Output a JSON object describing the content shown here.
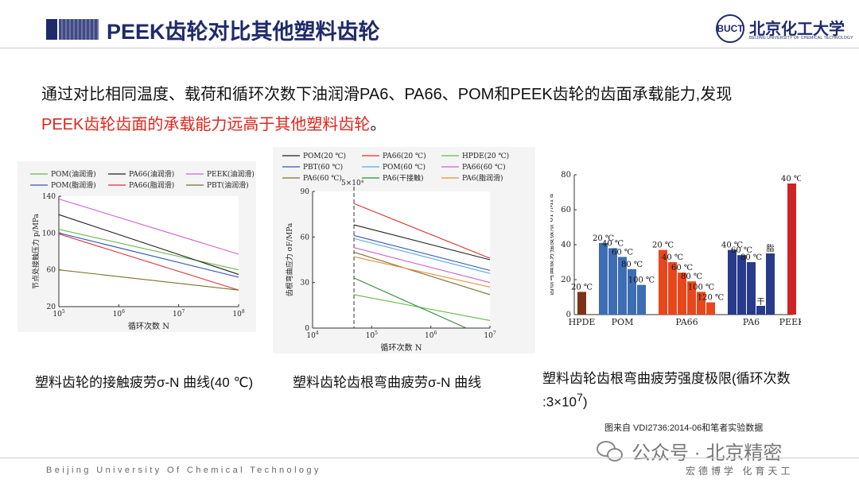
{
  "header": {
    "title": "PEEK齿轮对比其他塑料齿轮",
    "logo_name": "北京化工大学",
    "logo_en": "BEIJING UNIVERSITY OF CHEMICAL TECHNOLOGY",
    "logo_seal": "BUCT"
  },
  "intro": {
    "line1": "通过对比相同温度、载荷和循环次数下油润滑PA6、PA66、POM和PEEK齿轮的齿面承载能力,发现",
    "line2_highlight": "PEEK齿轮齿面的承载能力远高于其他塑料齿轮",
    "line2_tail": "。"
  },
  "captions": {
    "c1": "塑料齿轮的接触疲劳σ-N 曲线(40 ℃)",
    "c2": "塑料齿轮齿根弯曲疲劳σ-N 曲线",
    "c3_main": "塑料齿轮齿根弯曲疲劳强度极限(循环次数 :3×10",
    "c3_sup": "7",
    "c3_end": ")"
  },
  "source": "图来自 VDI2736:2014-06和笔者实验数据",
  "watermark": "公众号 · 北京精密",
  "footer": {
    "left": "Beijing University Of Chemical Technology",
    "right": "宏德博学 化育天工"
  },
  "chart_data": [
    {
      "type": "line",
      "title": "",
      "xlabel": "循环次数 N",
      "ylabel": "节点处接触压力 p/MPa",
      "x_scale": "log",
      "xlim_exp": [
        5,
        8
      ],
      "xticks_exp": [
        5,
        6,
        7,
        8
      ],
      "ylim": [
        20,
        140
      ],
      "yticks": [
        20,
        60,
        100,
        140
      ],
      "legend": [
        "POM(油润滑)",
        "PA66(油润滑)",
        "PEEK(油润滑)",
        "POM(脂润滑)",
        "PA66(脂润滑)",
        "PBT(油润滑)"
      ],
      "series": [
        {
          "name": "POM(油润滑)",
          "color": "#66bb44",
          "x_exp": [
            5,
            8
          ],
          "y": [
            104,
            60
          ]
        },
        {
          "name": "PA66(油润滑)",
          "color": "#222222",
          "x_exp": [
            5,
            8
          ],
          "y": [
            120,
            55
          ]
        },
        {
          "name": "PEEK(油润滑)",
          "color": "#cc66cc",
          "x_exp": [
            5,
            8
          ],
          "y": [
            137,
            77
          ]
        },
        {
          "name": "POM(脂润滑)",
          "color": "#3355bb",
          "x_exp": [
            5,
            8
          ],
          "y": [
            100,
            52
          ]
        },
        {
          "name": "PA66(脂润滑)",
          "color": "#dd3333",
          "x_exp": [
            5,
            8
          ],
          "y": [
            99,
            38
          ]
        },
        {
          "name": "PBT(油润滑)",
          "color": "#7a7030",
          "x_exp": [
            5,
            8
          ],
          "y": [
            60,
            38
          ]
        }
      ]
    },
    {
      "type": "line",
      "title": "",
      "xlabel": "循环次数 N",
      "ylabel": "齿根弯曲应力 σF/MPa",
      "x_scale": "log",
      "xlim_exp": [
        4,
        7
      ],
      "xticks_exp": [
        4,
        5,
        6,
        7
      ],
      "ylim": [
        0,
        90
      ],
      "yticks": [
        0,
        30,
        60,
        90
      ],
      "annotation": "5×10⁴",
      "annotation_x_exp": 4.7,
      "legend": [
        "POM(20 ℃)",
        "PA66(20 ℃)",
        "HPDE(20 ℃)",
        "PBT(60 ℃)",
        "POM(60 ℃)",
        "PA66(60 ℃)",
        "PA6(60 ℃)",
        "PA6(干接触)",
        "PA6(脂润滑)"
      ],
      "series": [
        {
          "name": "POM(20 ℃)",
          "color": "#222222",
          "x_exp": [
            4.7,
            7
          ],
          "y": [
            68,
            45
          ]
        },
        {
          "name": "PA66(20 ℃)",
          "color": "#dd3333",
          "x_exp": [
            4.7,
            7
          ],
          "y": [
            82,
            46
          ]
        },
        {
          "name": "HPDE(20 ℃)",
          "color": "#66bb44",
          "x_exp": [
            4.7,
            7
          ],
          "y": [
            22,
            5
          ]
        },
        {
          "name": "PBT(60 ℃)",
          "color": "#3355bb",
          "x_exp": [
            4.7,
            7
          ],
          "y": [
            61,
            38
          ]
        },
        {
          "name": "POM(60 ℃)",
          "color": "#55aadd",
          "x_exp": [
            4.7,
            7
          ],
          "y": [
            59,
            36
          ]
        },
        {
          "name": "PA66(60 ℃)",
          "color": "#cc66cc",
          "x_exp": [
            4.7,
            7
          ],
          "y": [
            53,
            30
          ]
        },
        {
          "name": "PA6(60 ℃)",
          "color": "#7a7030",
          "x_exp": [
            4.7,
            7
          ],
          "y": [
            50,
            22
          ]
        },
        {
          "name": "PA6(干接触)",
          "color": "#2e8b3c",
          "x_exp": [
            4.7,
            6.6
          ],
          "y": [
            33,
            0
          ]
        },
        {
          "name": "PA6(脂润滑)",
          "color": "#f08a30",
          "x_exp": [
            4.7,
            7
          ],
          "y": [
            47,
            27
          ]
        }
      ]
    },
    {
      "type": "bar",
      "title": "",
      "xlabel": "",
      "ylabel": "齿根弯曲疲劳强度极限 σF/MPa",
      "ylim": [
        0,
        80
      ],
      "yticks": [
        0,
        20,
        40,
        60,
        80
      ],
      "groups": [
        "HPDE",
        "POM",
        "PA66",
        "PA6",
        "PEEK"
      ],
      "bars": [
        {
          "group": "HPDE",
          "label": "20 ℃",
          "value": 13,
          "color": "#7b3419"
        },
        {
          "group": "POM",
          "label": "20 ℃",
          "value": 41,
          "color": "#3d6db3"
        },
        {
          "group": "POM",
          "label": "40 ℃",
          "value": 38,
          "color": "#3d6db3"
        },
        {
          "group": "POM",
          "label": "60 ℃",
          "value": 33,
          "color": "#3d6db3"
        },
        {
          "group": "POM",
          "label": "80 ℃",
          "value": 26,
          "color": "#3d6db3"
        },
        {
          "group": "POM",
          "label": "100 ℃",
          "value": 17,
          "color": "#3d6db3"
        },
        {
          "group": "PA66",
          "label": "20 ℃",
          "value": 37,
          "color": "#e8471c"
        },
        {
          "group": "PA66",
          "label": "40 ℃",
          "value": 30,
          "color": "#e8471c"
        },
        {
          "group": "PA66",
          "label": "60 ℃",
          "value": 24,
          "color": "#e8471c"
        },
        {
          "group": "PA66",
          "label": "80 ℃",
          "value": 19,
          "color": "#e8471c"
        },
        {
          "group": "PA66",
          "label": "100 ℃",
          "value": 13,
          "color": "#e8471c"
        },
        {
          "group": "PA66",
          "label": "120 ℃",
          "value": 7,
          "color": "#e8471c"
        },
        {
          "group": "PA6",
          "label": "40 ℃",
          "value": 37,
          "color": "#273b8a"
        },
        {
          "group": "PA6",
          "label": "60 ℃",
          "value": 34,
          "color": "#273b8a"
        },
        {
          "group": "PA6",
          "label": "80 ℃",
          "value": 30,
          "color": "#273b8a"
        },
        {
          "group": "PA6",
          "label": "干",
          "value": 5,
          "color": "#273b8a"
        },
        {
          "group": "PA6",
          "label": "脂",
          "value": 35,
          "color": "#273b8a"
        },
        {
          "group": "PEEK",
          "label": "40 ℃",
          "value": 75,
          "color": "#cc2424"
        }
      ]
    }
  ]
}
